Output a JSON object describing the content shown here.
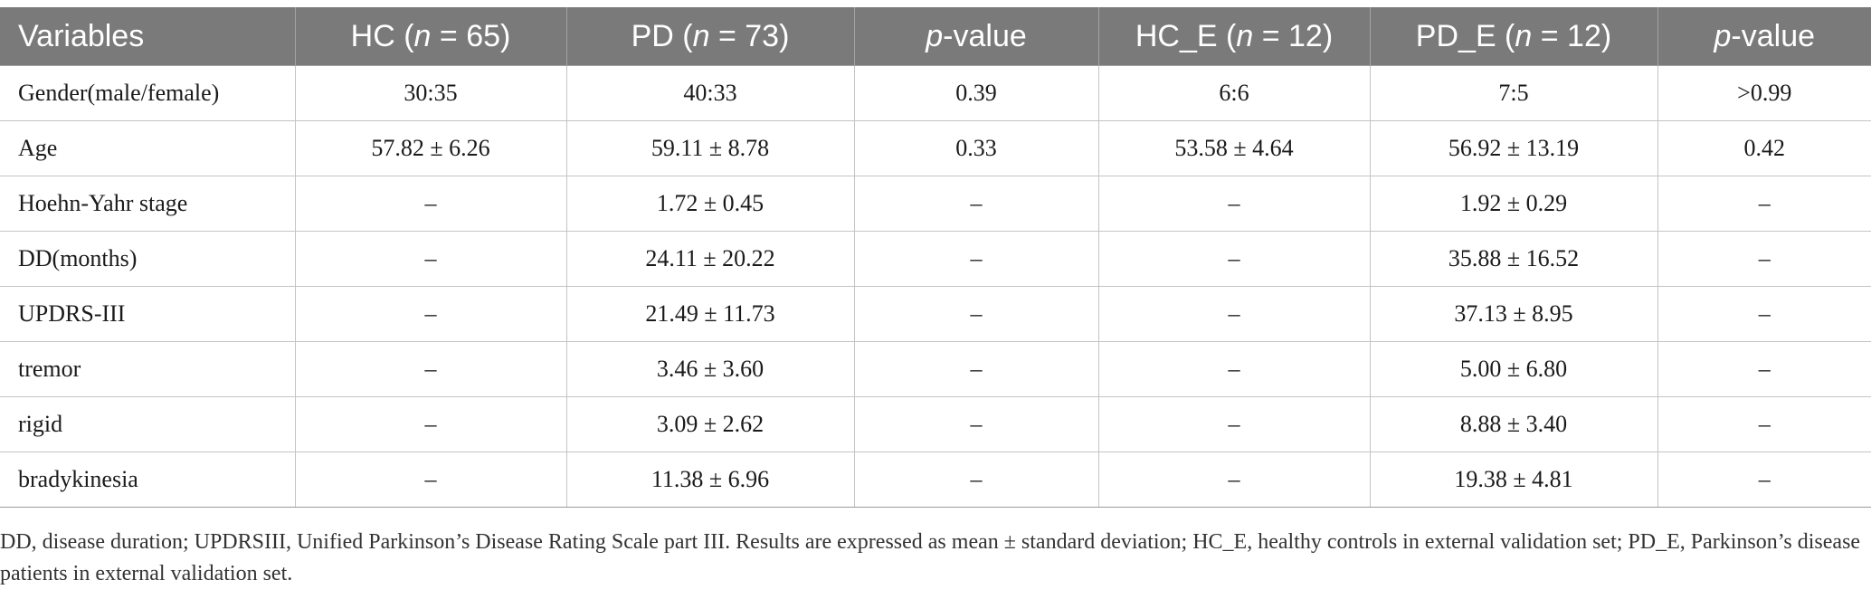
{
  "table": {
    "headers": [
      {
        "pre": "Variables",
        "italic": "",
        "post": ""
      },
      {
        "pre": "HC (",
        "italic": "n",
        "post": " = 65)"
      },
      {
        "pre": "PD (",
        "italic": "n",
        "post": " = 73)"
      },
      {
        "pre": "",
        "italic": "p",
        "post": "-value"
      },
      {
        "pre": "HC_E (",
        "italic": "n",
        "post": " = 12)"
      },
      {
        "pre": "PD_E (",
        "italic": "n",
        "post": " = 12)"
      },
      {
        "pre": "",
        "italic": "p",
        "post": "-value"
      }
    ],
    "rows": [
      [
        "Gender(male/female)",
        "30:35",
        "40:33",
        "0.39",
        "6:6",
        "7:5",
        ">0.99"
      ],
      [
        "Age",
        "57.82 ± 6.26",
        "59.11 ± 8.78",
        "0.33",
        "53.58 ± 4.64",
        "56.92 ± 13.19",
        "0.42"
      ],
      [
        "Hoehn-Yahr stage",
        "–",
        "1.72 ± 0.45",
        "–",
        "–",
        "1.92 ± 0.29",
        "–"
      ],
      [
        "DD(months)",
        "–",
        "24.11 ± 20.22",
        "–",
        "–",
        "35.88 ± 16.52",
        "–"
      ],
      [
        "UPDRS-III",
        "–",
        "21.49 ± 11.73",
        "–",
        "–",
        "37.13 ± 8.95",
        "–"
      ],
      [
        "tremor",
        "–",
        "3.46 ± 3.60",
        "–",
        "–",
        "5.00 ± 6.80",
        "–"
      ],
      [
        "rigid",
        "–",
        "3.09 ± 2.62",
        "–",
        "–",
        "8.88 ± 3.40",
        "–"
      ],
      [
        "bradykinesia",
        "–",
        "11.38 ± 6.96",
        "–",
        "–",
        "19.38 ± 4.81",
        "–"
      ]
    ]
  },
  "footnote": "DD, disease duration; UPDRSIII, Unified Parkinson’s Disease Rating Scale part III. Results are expressed as mean ± standard deviation; HC_E, healthy controls in external validation set; PD_E, Parkinson’s disease patients in external validation set.",
  "colors": {
    "header_bg": "#7a7a7a",
    "header_text": "#ffffff",
    "grid": "#c4c4c4"
  }
}
